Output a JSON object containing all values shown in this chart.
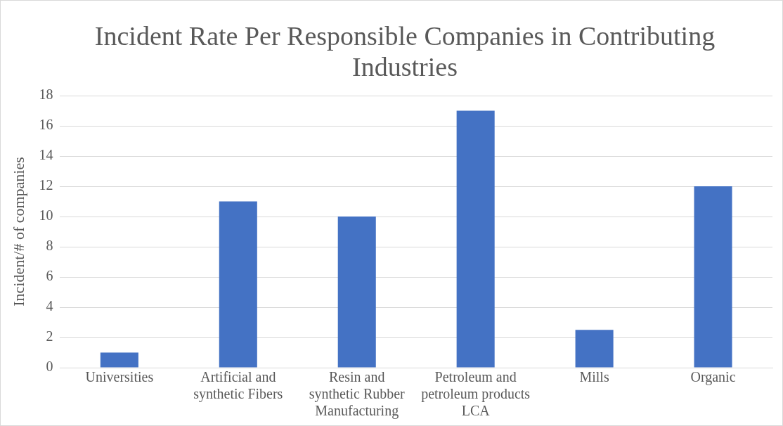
{
  "chart_data": {
    "type": "bar",
    "title": "Incident Rate Per Responsible Companies in Contributing Industries",
    "ylabel": "Incident/# of companies",
    "categories": [
      "Universities",
      "Artificial and synthetic Fibers",
      "Resin and synthetic Rubber Manufacturing",
      "Petroleum and petroleum products LCA",
      "Mills",
      "Organic"
    ],
    "values": [
      1,
      11,
      10,
      17,
      2.5,
      12
    ],
    "color": "#4472c4",
    "ylim": [
      0,
      18
    ],
    "yticks": [
      0,
      2,
      4,
      6,
      8,
      10,
      12,
      14,
      16,
      18
    ],
    "grid": "y",
    "legend": false
  }
}
